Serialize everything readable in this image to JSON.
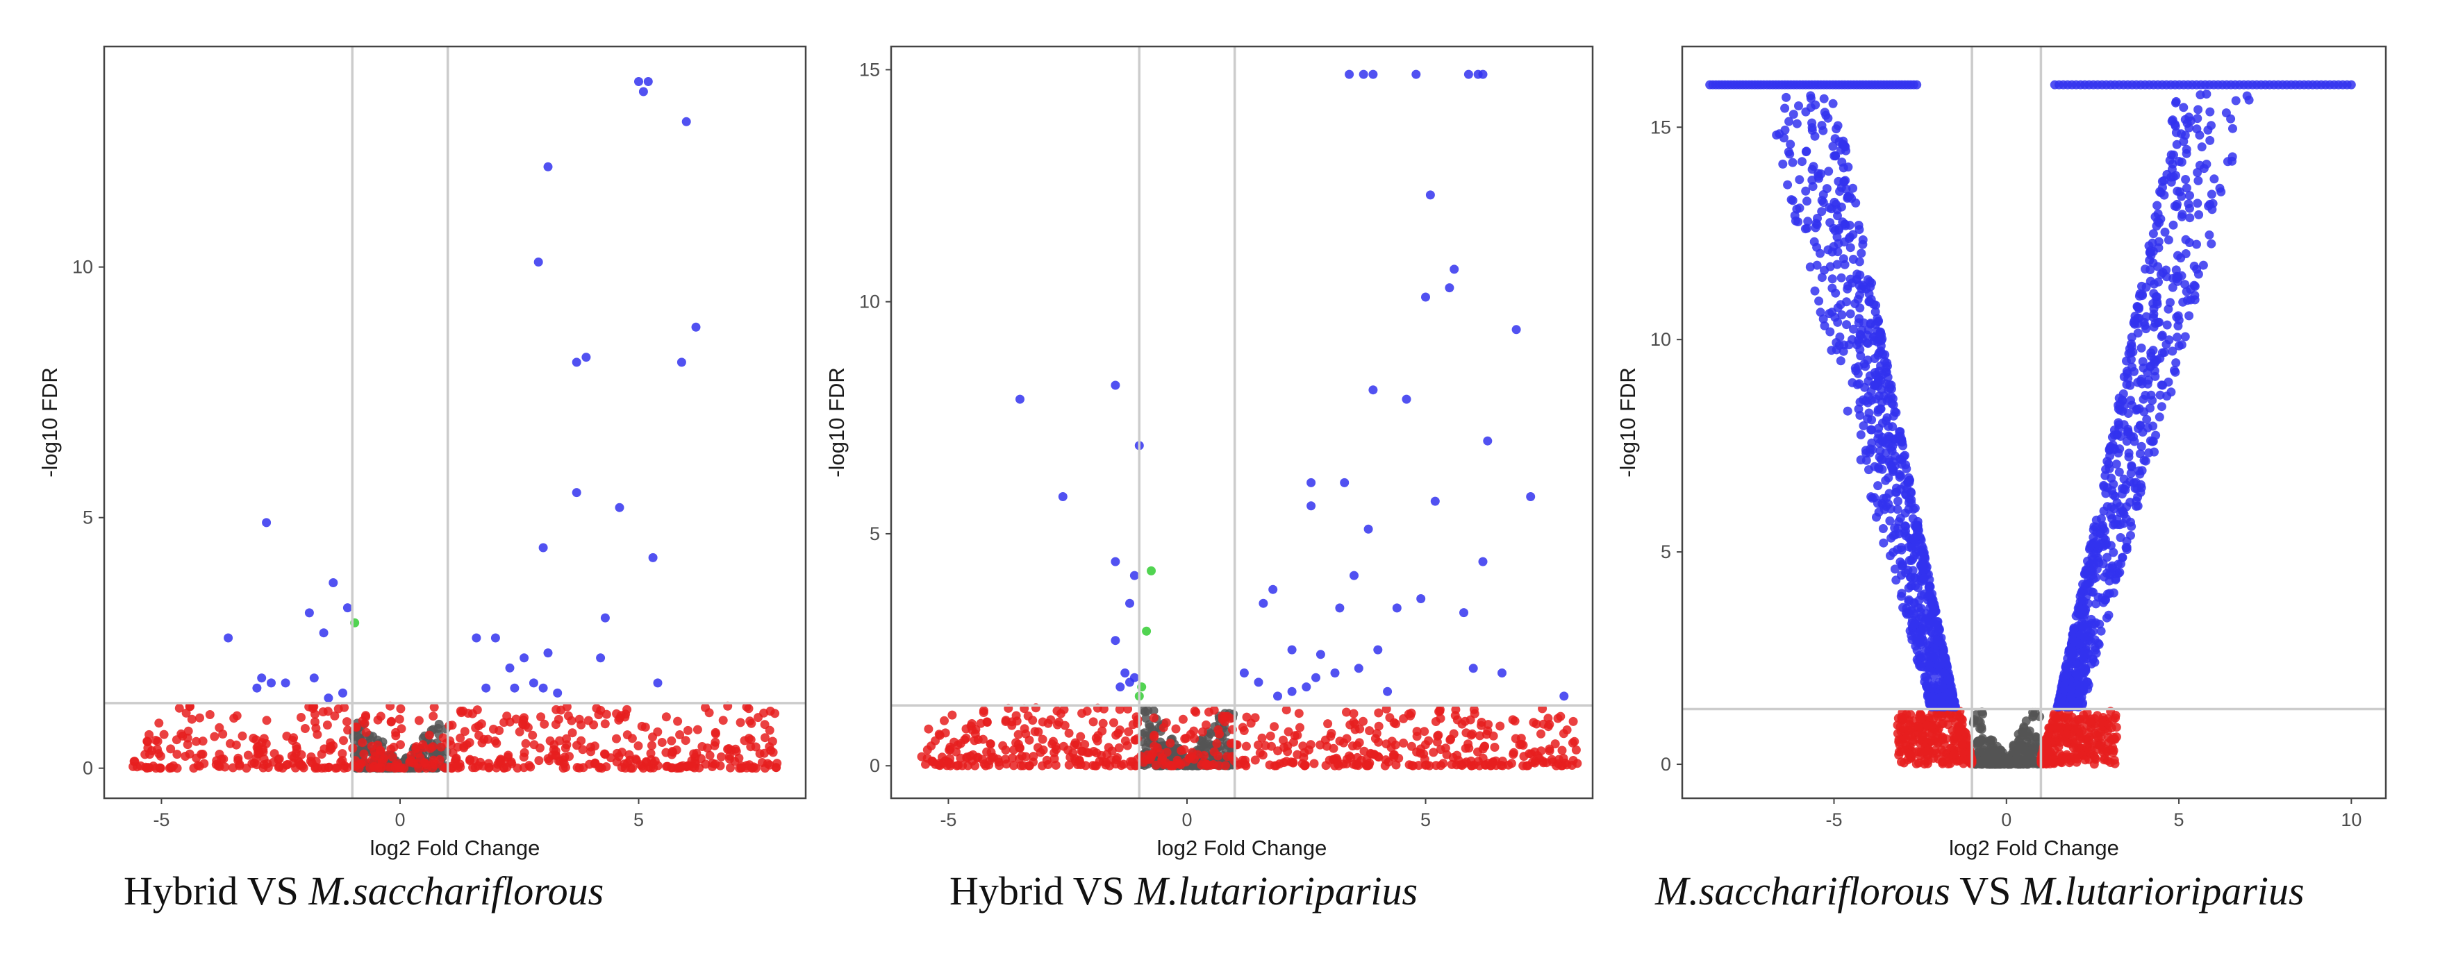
{
  "colors": {
    "up_down_significant": "#3333ee",
    "fdr_only": "#e61e1e",
    "fold_only": "#33cc33",
    "not_significant": "#555555",
    "threshold_line": "#cccccc",
    "panel_border": "#444444",
    "background": "#ffffff"
  },
  "chart_data": [
    {
      "type": "scatter",
      "title": "",
      "xlabel": "log2 Fold Change",
      "ylabel": "-log10 FDR",
      "xlim": [
        -6.2,
        8.5
      ],
      "ylim": [
        -0.6,
        14.4
      ],
      "x_ticks": [
        -5,
        0,
        5
      ],
      "x_tick_labels": [
        "-5",
        "0",
        "5"
      ],
      "y_ticks": [
        0,
        5,
        10
      ],
      "y_tick_labels": [
        "0",
        "5",
        "10"
      ],
      "thresholds": {
        "x": [
          -1,
          1
        ],
        "y": 1.3
      },
      "grid": false,
      "caption": {
        "plain": "Hybrid VS ",
        "italic": "M.sacchariflorous"
      },
      "series": [
        {
          "name": "significant",
          "color_key": "up_down_significant",
          "points": [
            [
              5.0,
              13.7
            ],
            [
              5.2,
              13.7
            ],
            [
              5.1,
              13.5
            ],
            [
              6.0,
              12.9
            ],
            [
              3.1,
              12.0
            ],
            [
              2.9,
              10.1
            ],
            [
              6.2,
              8.8
            ],
            [
              5.9,
              8.1
            ],
            [
              3.9,
              8.2
            ],
            [
              3.7,
              8.1
            ],
            [
              3.7,
              5.5
            ],
            [
              4.6,
              5.2
            ],
            [
              3.0,
              4.4
            ],
            [
              5.3,
              4.2
            ],
            [
              4.3,
              3.0
            ],
            [
              4.2,
              2.2
            ],
            [
              5.4,
              1.7
            ],
            [
              3.1,
              2.3
            ],
            [
              2.6,
              2.2
            ],
            [
              2.3,
              2.0
            ],
            [
              2.0,
              2.6
            ],
            [
              1.6,
              2.6
            ],
            [
              1.8,
              1.6
            ],
            [
              2.8,
              1.7
            ],
            [
              3.0,
              1.6
            ],
            [
              3.3,
              1.5
            ],
            [
              2.4,
              1.6
            ],
            [
              -2.8,
              4.9
            ],
            [
              -1.4,
              3.7
            ],
            [
              -1.1,
              3.2
            ],
            [
              -1.9,
              3.1
            ],
            [
              -1.6,
              2.7
            ],
            [
              -3.6,
              2.6
            ],
            [
              -2.9,
              1.8
            ],
            [
              -2.7,
              1.7
            ],
            [
              -2.4,
              1.7
            ],
            [
              -1.8,
              1.8
            ],
            [
              -3.0,
              1.6
            ],
            [
              -1.5,
              1.4
            ],
            [
              -1.2,
              1.5
            ]
          ]
        },
        {
          "name": "fold_only",
          "color_key": "fold_only",
          "points": [
            [
              -0.95,
              2.9
            ]
          ]
        },
        {
          "name": "fdr_only",
          "color_key": "fdr_only",
          "generator": {
            "seed": 11,
            "x_min": -5.6,
            "x_max": 7.9,
            "count": 560,
            "y_max": 1.25
          }
        },
        {
          "name": "not_significant",
          "color_key": "not_significant",
          "generator": {
            "seed": 23,
            "x_min": -0.98,
            "x_max": 0.98,
            "count": 240,
            "y_max": 0.9
          }
        }
      ]
    },
    {
      "type": "scatter",
      "title": "",
      "xlabel": "log2 Fold Change",
      "ylabel": "-log10 FDR",
      "xlim": [
        -6.2,
        8.5
      ],
      "ylim": [
        -0.7,
        15.5
      ],
      "x_ticks": [
        -5,
        0,
        5
      ],
      "x_tick_labels": [
        "-5",
        "0",
        "5"
      ],
      "y_ticks": [
        0,
        5,
        10,
        15
      ],
      "y_tick_labels": [
        "0",
        "5",
        "10",
        "15"
      ],
      "thresholds": {
        "x": [
          -1,
          1
        ],
        "y": 1.3
      },
      "grid": false,
      "caption": {
        "plain": "Hybrid VS ",
        "italic": "M.lutarioriparius"
      },
      "series": [
        {
          "name": "significant",
          "color_key": "up_down_significant",
          "points": [
            [
              3.4,
              14.9
            ],
            [
              3.7,
              14.9
            ],
            [
              3.9,
              14.9
            ],
            [
              4.8,
              14.9
            ],
            [
              5.9,
              14.9
            ],
            [
              6.1,
              14.9
            ],
            [
              6.2,
              14.9
            ],
            [
              5.1,
              12.3
            ],
            [
              5.6,
              10.7
            ],
            [
              5.5,
              10.3
            ],
            [
              5.0,
              10.1
            ],
            [
              6.9,
              9.4
            ],
            [
              3.9,
              8.1
            ],
            [
              4.6,
              7.9
            ],
            [
              6.3,
              7.0
            ],
            [
              2.6,
              6.1
            ],
            [
              3.3,
              6.1
            ],
            [
              2.6,
              5.6
            ],
            [
              7.2,
              5.8
            ],
            [
              5.2,
              5.7
            ],
            [
              3.8,
              5.1
            ],
            [
              6.2,
              4.4
            ],
            [
              3.5,
              4.1
            ],
            [
              3.2,
              3.4
            ],
            [
              5.8,
              3.3
            ],
            [
              4.9,
              3.6
            ],
            [
              4.4,
              3.4
            ],
            [
              1.8,
              3.8
            ],
            [
              1.6,
              3.5
            ],
            [
              2.2,
              2.5
            ],
            [
              2.8,
              2.4
            ],
            [
              4.0,
              2.5
            ],
            [
              3.1,
              2.0
            ],
            [
              2.7,
              1.9
            ],
            [
              2.2,
              1.6
            ],
            [
              1.2,
              2.0
            ],
            [
              1.5,
              1.8
            ],
            [
              1.9,
              1.5
            ],
            [
              2.5,
              1.7
            ],
            [
              3.6,
              2.1
            ],
            [
              4.2,
              1.6
            ],
            [
              6.6,
              2.0
            ],
            [
              6.0,
              2.1
            ],
            [
              7.9,
              1.5
            ],
            [
              -1.5,
              8.2
            ],
            [
              -3.5,
              7.9
            ],
            [
              -1.0,
              6.9
            ],
            [
              -2.6,
              5.8
            ],
            [
              -1.5,
              4.4
            ],
            [
              -1.1,
              4.1
            ],
            [
              -1.2,
              3.5
            ],
            [
              -1.5,
              2.7
            ],
            [
              -1.3,
              2.0
            ],
            [
              -1.2,
              1.8
            ],
            [
              -1.4,
              1.7
            ],
            [
              -1.1,
              1.9
            ]
          ]
        },
        {
          "name": "fold_only",
          "color_key": "fold_only",
          "points": [
            [
              -0.75,
              4.2
            ],
            [
              -0.85,
              2.9
            ],
            [
              -0.95,
              1.7
            ],
            [
              -1.0,
              1.5
            ]
          ]
        },
        {
          "name": "fdr_only",
          "color_key": "fdr_only",
          "generator": {
            "seed": 37,
            "x_min": -5.6,
            "x_max": 8.2,
            "count": 580,
            "y_max": 1.25
          }
        },
        {
          "name": "not_significant",
          "color_key": "not_significant",
          "generator": {
            "seed": 41,
            "x_min": -0.98,
            "x_max": 0.98,
            "count": 260,
            "y_max": 1.2
          }
        }
      ]
    },
    {
      "type": "scatter",
      "title": "",
      "xlabel": "log2 Fold Change",
      "ylabel": "-log10 FDR",
      "xlim": [
        -9.4,
        11.0
      ],
      "ylim": [
        -0.8,
        16.9
      ],
      "x_ticks": [
        -5,
        0,
        5,
        10
      ],
      "x_tick_labels": [
        "-5",
        "0",
        "5",
        "10"
      ],
      "y_ticks": [
        0,
        5,
        10,
        15
      ],
      "y_tick_labels": [
        "0",
        "5",
        "10",
        "15"
      ],
      "thresholds": {
        "x": [
          -1,
          1
        ],
        "y": 1.3
      },
      "grid": false,
      "caption": {
        "italic": "M.sacchariflorous",
        "plain": " VS ",
        "italic2": "M.lutarioriparius"
      },
      "series": [
        {
          "name": "significant_cap_left",
          "color_key": "up_down_significant",
          "cap": {
            "y": 16.0,
            "x_min": -8.6,
            "x_max": -2.6,
            "count": 70
          }
        },
        {
          "name": "significant_cap_right",
          "color_key": "up_down_significant",
          "cap": {
            "y": 16.0,
            "x_min": 1.4,
            "x_max": 10.0,
            "count": 70
          }
        },
        {
          "name": "significant_volcano",
          "color_key": "up_down_significant",
          "volcano": {
            "seed": 59,
            "count": 1700,
            "y_min": 1.35,
            "y_max": 15.8,
            "x_inner": 1.0,
            "spread": 1.2
          }
        },
        {
          "name": "fdr_only",
          "color_key": "fdr_only",
          "volcano_base": {
            "seed": 71,
            "count": 520,
            "x_inner": 1.0,
            "x_outer": 3.2,
            "y_max": 1.25
          }
        },
        {
          "name": "not_significant",
          "color_key": "not_significant",
          "generator": {
            "seed": 83,
            "x_min": -0.98,
            "x_max": 0.98,
            "count": 300,
            "y_max": 1.25
          }
        }
      ]
    }
  ]
}
